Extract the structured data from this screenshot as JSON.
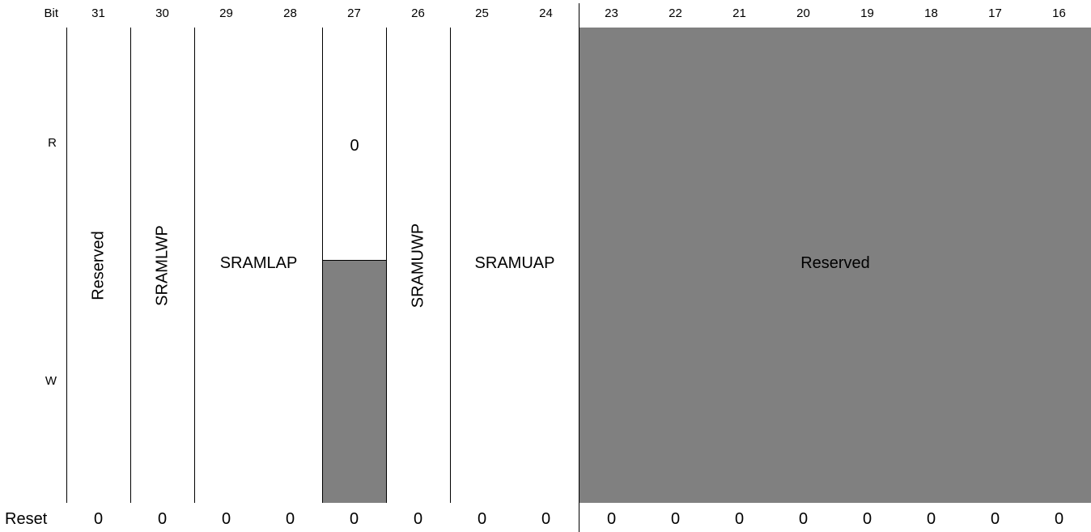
{
  "header": {
    "bit_label": "Bit",
    "bits": [
      "31",
      "30",
      "29",
      "28",
      "27",
      "26",
      "25",
      "24",
      "23",
      "22",
      "21",
      "20",
      "19",
      "18",
      "17",
      "16"
    ]
  },
  "rows": {
    "read_label": "R",
    "write_label": "W",
    "reset_label": "Reset"
  },
  "reset_values": [
    "0",
    "0",
    "0",
    "0",
    "0",
    "0",
    "0",
    "0",
    "0",
    "0",
    "0",
    "0",
    "0",
    "0",
    "0",
    "0"
  ],
  "fields": {
    "reserved_31": "Reserved",
    "sramlwp": "SRAMLWP",
    "sramlap": "SRAMLAP",
    "bit27_read": "0",
    "sramuwp": "SRAMUWP",
    "sramuap": "SRAMUAP",
    "reserved_low": "Reserved"
  },
  "colors": {
    "reserved_fill": "#808080",
    "border": "#000000",
    "background": "#ffffff"
  }
}
